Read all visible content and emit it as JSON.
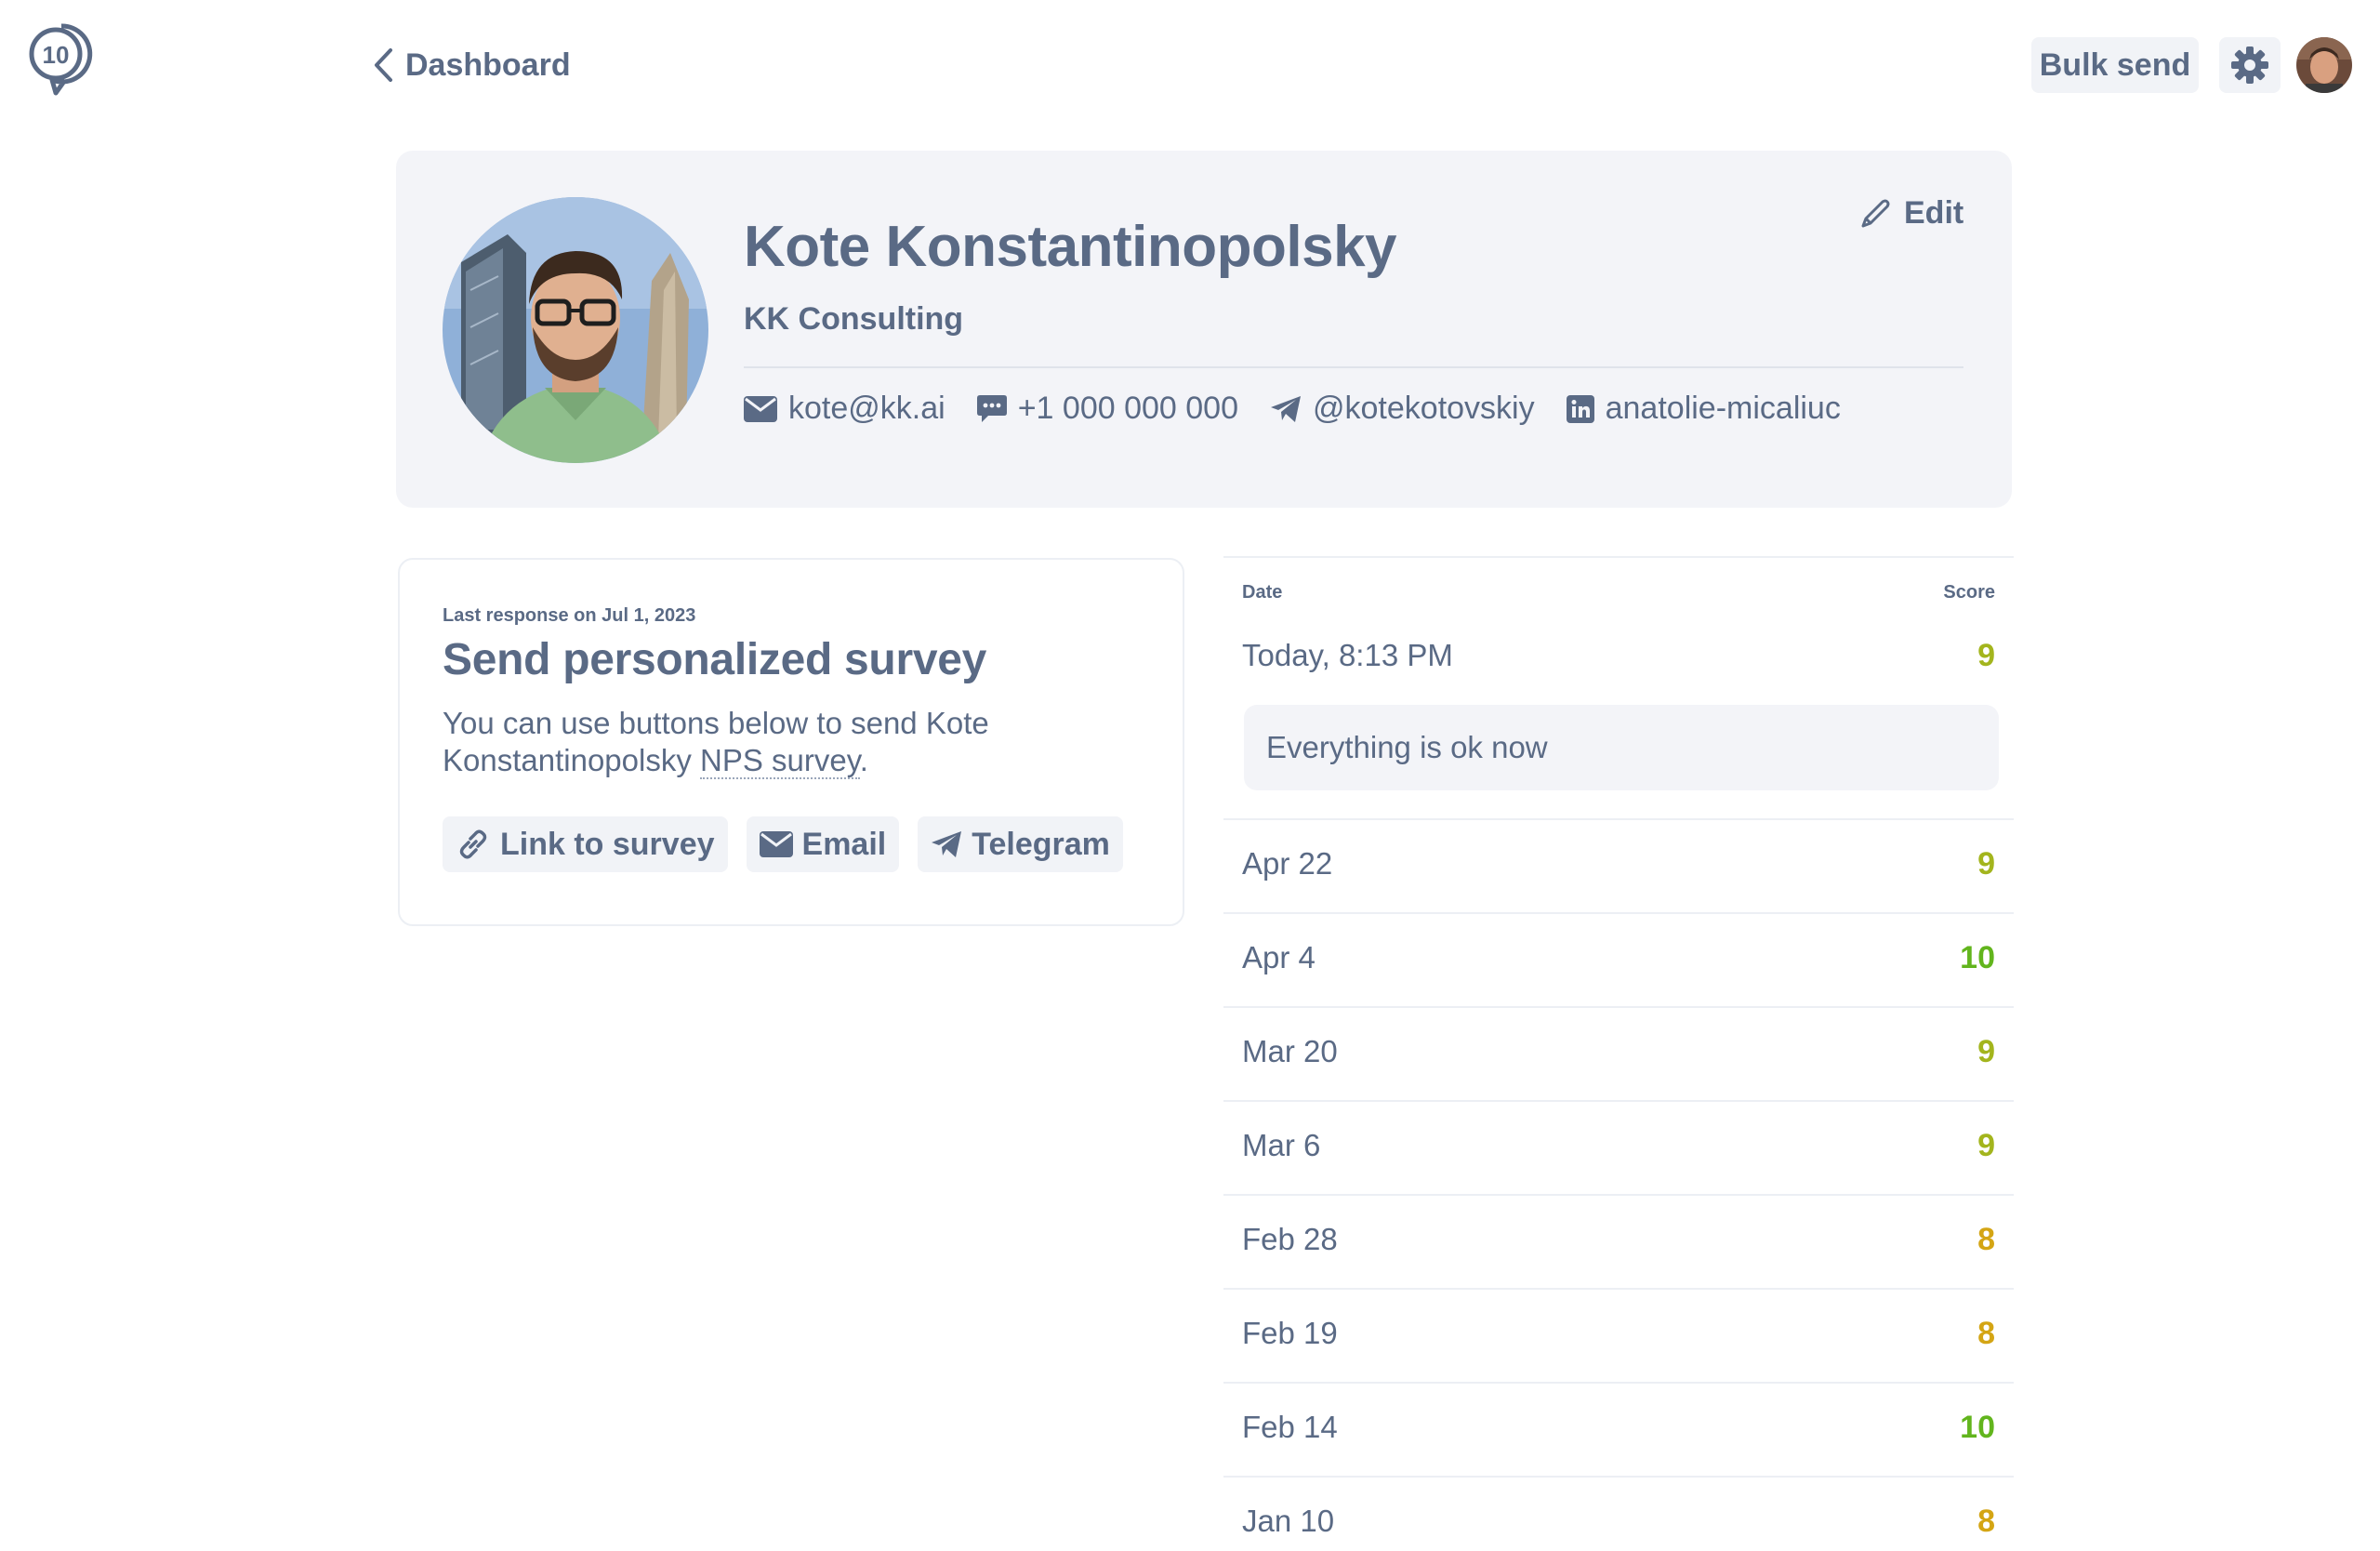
{
  "header": {
    "back_label": "Dashboard",
    "bulk_send_label": "Bulk send"
  },
  "profile": {
    "name": "Kote Konstantinopolsky",
    "company": "KK Consulting",
    "edit_label": "Edit",
    "email": "kote@kk.ai",
    "phone": "+1 000 000 000",
    "telegram": "@kotekotovskiy",
    "linkedin": "anatolie-micaliuc"
  },
  "survey": {
    "last_response": "Last response on Jul 1, 2023",
    "title": "Send personalized survey",
    "desc_prefix": "You can use buttons below to send Kote Konstantinopolsky ",
    "desc_link": "NPS survey",
    "desc_suffix": ".",
    "buttons": {
      "link": "Link to survey",
      "email": "Email",
      "telegram": "Telegram"
    }
  },
  "responses": {
    "headers": {
      "date": "Date",
      "score": "Score"
    },
    "rows": [
      {
        "date": "Today, 8:13 PM",
        "score": "9",
        "comment": "Everything is ok now"
      },
      {
        "date": "Apr 22",
        "score": "9"
      },
      {
        "date": "Apr 4",
        "score": "10"
      },
      {
        "date": "Mar 20",
        "score": "9"
      },
      {
        "date": "Mar 6",
        "score": "9"
      },
      {
        "date": "Feb 28",
        "score": "8"
      },
      {
        "date": "Feb 19",
        "score": "8"
      },
      {
        "date": "Feb 14",
        "score": "10"
      },
      {
        "date": "Jan 10",
        "score": "8"
      }
    ]
  },
  "colors": {
    "text": "#5a6a85",
    "score_9": "#a3b51d",
    "score_10": "#62b51d",
    "score_8": "#d4a514"
  }
}
